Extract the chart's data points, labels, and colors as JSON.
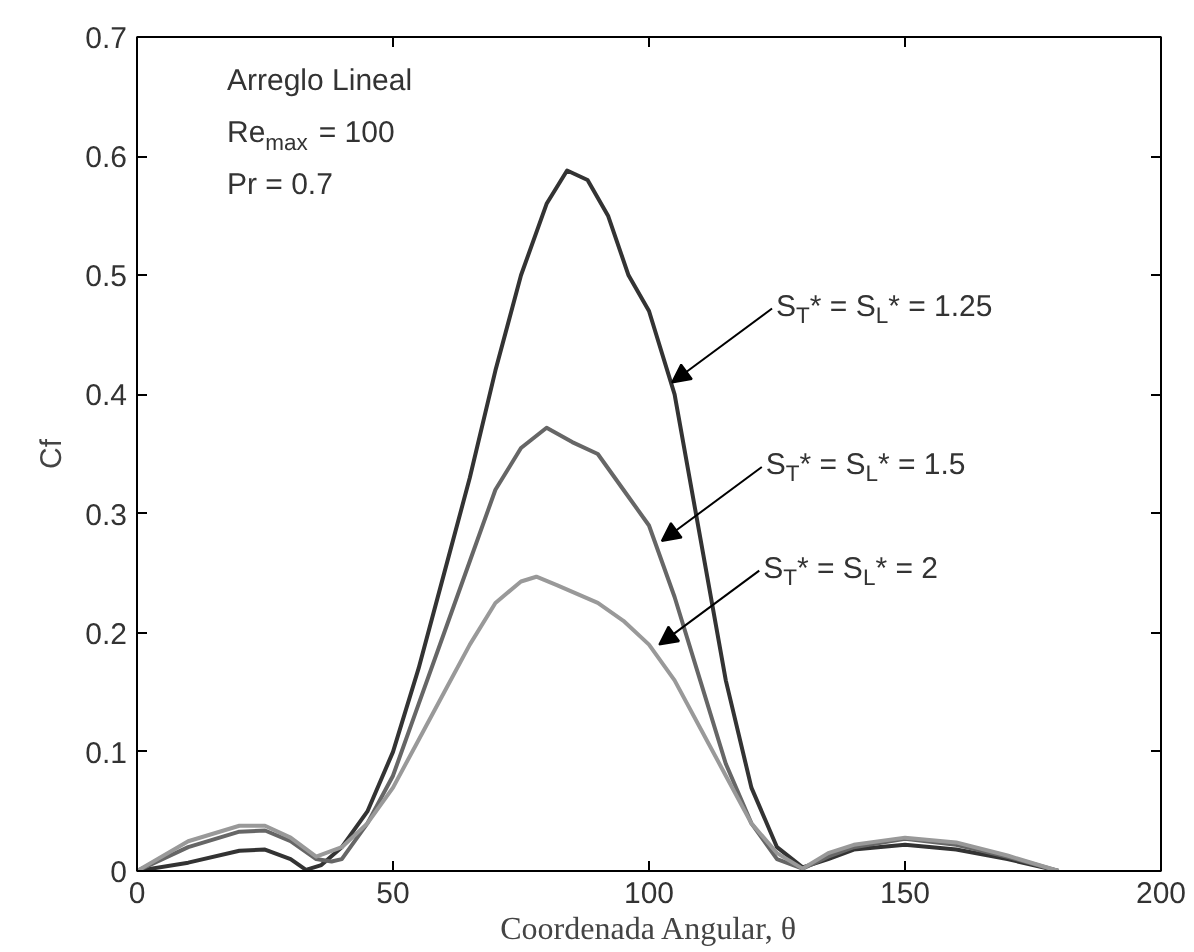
{
  "chart_data": {
    "type": "line",
    "xlabel": "Coordenada Angular, θ",
    "ylabel": "Cf",
    "xlim": [
      0,
      200
    ],
    "ylim": [
      0,
      0.7
    ],
    "xticks": [
      0,
      50,
      100,
      150,
      200
    ],
    "yticks": [
      0,
      0.1,
      0.2,
      0.3,
      0.4,
      0.5,
      0.6,
      0.7
    ],
    "grid": false,
    "annotations": [
      "Arreglo Lineal",
      "Re$_{max}$ = 100",
      "Pr = 0.7",
      {
        "text": "S$_{T}$* = S$_{L}$* = 1.25",
        "x": 104.5,
        "y": 0.41
      },
      {
        "text": "S$_{T}$* = S$_{L}$* = 1.5",
        "x": 102.5,
        "y": 0.277
      },
      {
        "text": "S$_{T}$* = S$_{L}$* = 2",
        "x": 102,
        "y": 0.19
      }
    ],
    "series": [
      {
        "color": "#333333",
        "x": [
          0,
          10,
          20,
          25,
          30,
          33,
          36,
          40,
          45,
          50,
          55,
          60,
          65,
          70,
          75,
          80,
          84,
          88,
          92,
          96,
          100,
          105,
          110,
          115,
          120,
          125,
          130,
          135,
          140,
          150,
          160,
          170,
          178,
          180
        ],
        "values": [
          0,
          0.007,
          0.017,
          0.018,
          0.01,
          0.001,
          0.005,
          0.02,
          0.05,
          0.1,
          0.17,
          0.25,
          0.33,
          0.42,
          0.5,
          0.56,
          0.588,
          0.58,
          0.55,
          0.5,
          0.47,
          0.4,
          0.28,
          0.16,
          0.07,
          0.02,
          0.003,
          0.01,
          0.018,
          0.022,
          0.018,
          0.01,
          0.002,
          0
        ]
      },
      {
        "color": "#666666",
        "x": [
          0,
          10,
          20,
          25,
          30,
          35,
          38,
          40,
          45,
          50,
          55,
          60,
          65,
          70,
          75,
          80,
          85,
          90,
          95,
          100,
          105,
          110,
          115,
          120,
          125,
          130,
          135,
          140,
          150,
          160,
          170,
          180
        ],
        "values": [
          0,
          0.02,
          0.033,
          0.034,
          0.025,
          0.01,
          0.008,
          0.01,
          0.04,
          0.08,
          0.14,
          0.2,
          0.26,
          0.32,
          0.355,
          0.372,
          0.36,
          0.35,
          0.32,
          0.29,
          0.23,
          0.16,
          0.09,
          0.04,
          0.01,
          0.002,
          0.012,
          0.02,
          0.027,
          0.022,
          0.012,
          0
        ]
      },
      {
        "color": "#999999",
        "x": [
          0,
          10,
          20,
          25,
          30,
          35,
          40,
          45,
          50,
          55,
          60,
          65,
          70,
          75,
          78,
          82,
          90,
          95,
          100,
          105,
          110,
          115,
          120,
          125,
          130,
          135,
          140,
          150,
          160,
          170,
          180
        ],
        "values": [
          0,
          0.025,
          0.038,
          0.038,
          0.028,
          0.012,
          0.02,
          0.04,
          0.07,
          0.11,
          0.15,
          0.19,
          0.225,
          0.243,
          0.247,
          0.24,
          0.225,
          0.21,
          0.19,
          0.16,
          0.12,
          0.08,
          0.04,
          0.015,
          0.002,
          0.015,
          0.022,
          0.028,
          0.024,
          0.013,
          0
        ]
      }
    ]
  }
}
